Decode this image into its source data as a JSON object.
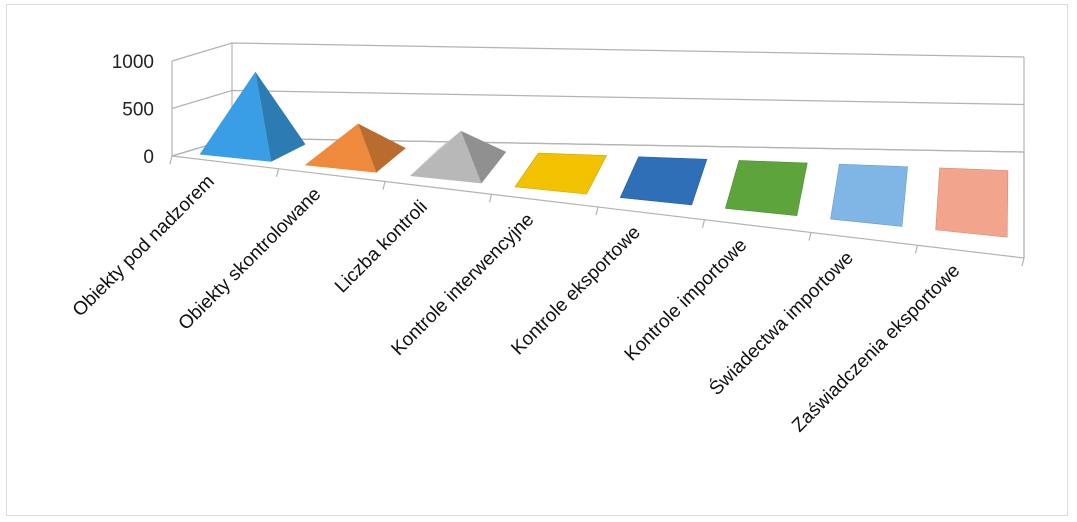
{
  "chart_data": {
    "type": "bar",
    "style": "3d-pyramid",
    "categories": [
      "Obiekty pod nadzorem",
      "Obiekty skontrolowane",
      "Liczba kontroli",
      "Kontrole interwencyjne",
      "Kontrole eksportowe",
      "Kontrole importowe",
      "Świadectwa importowe",
      "Zaświadczenia eksportowe"
    ],
    "values": [
      830,
      360,
      360,
      15,
      10,
      10,
      10,
      20
    ],
    "colors": [
      "#3a9ee6",
      "#ef8a3c",
      "#b8b8b8",
      "#f2c200",
      "#2f6fb8",
      "#5ea43c",
      "#7fb6e6",
      "#f3a48c"
    ],
    "ylim": [
      0,
      1000
    ],
    "yticks": [
      0,
      500,
      1000
    ],
    "grid": true,
    "legend": "none"
  }
}
